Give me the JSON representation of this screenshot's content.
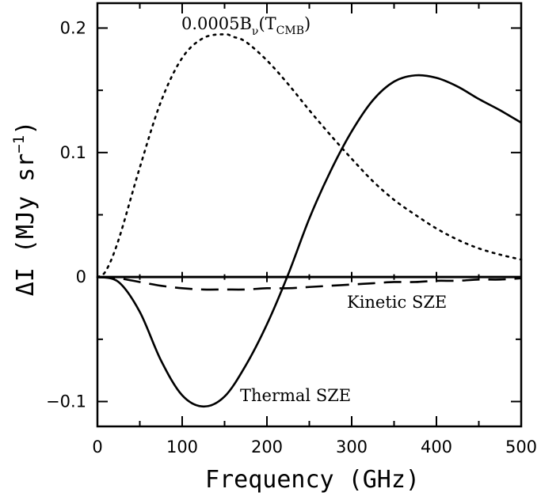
{
  "chart_data": {
    "type": "line",
    "xlabel": "Frequency (GHz)",
    "ylabel_main": "ΔI (MJy sr",
    "ylabel_exp": "−1",
    "ylabel_close": ")",
    "xlim": [
      0,
      500
    ],
    "ylim": [
      -0.12,
      0.22
    ],
    "grid": false,
    "x_ticks": [
      0,
      100,
      200,
      300,
      400,
      500
    ],
    "x_tick_labels": [
      "0",
      "100",
      "200",
      "300",
      "400",
      "500"
    ],
    "y_ticks": [
      -0.1,
      0,
      0.1,
      0.2
    ],
    "y_tick_labels": [
      "−0.1",
      "0",
      "0.1",
      "0.2"
    ],
    "annotations": {
      "kinetic": "Kinetic SZE",
      "thermal": "Thermal SZE",
      "cmb_prefix": "0.0005B",
      "cmb_sub_nu": "ν",
      "cmb_open": "(T",
      "cmb_sub": "CMB",
      "cmb_close": ")"
    },
    "series": [
      {
        "style": "solid",
        "x": [
          0,
          25,
          50,
          75,
          100,
          125,
          150,
          175,
          200,
          225,
          250,
          275,
          300,
          325,
          350,
          375,
          400,
          425,
          450,
          475,
          500
        ],
        "y": [
          0,
          -0.004,
          -0.028,
          -0.067,
          -0.095,
          -0.104,
          -0.096,
          -0.071,
          -0.038,
          0.002,
          0.047,
          0.085,
          0.117,
          0.142,
          0.157,
          0.162,
          0.16,
          0.153,
          0.143,
          0.134,
          0.124
        ]
      },
      {
        "style": "dashed",
        "x": [
          0,
          25,
          50,
          75,
          100,
          125,
          150,
          175,
          200,
          225,
          250,
          275,
          300,
          325,
          350,
          375,
          400,
          425,
          450,
          475,
          500
        ],
        "y": [
          0,
          -0.001,
          -0.004,
          -0.007,
          -0.009,
          -0.01,
          -0.01,
          -0.01,
          -0.009,
          -0.009,
          -0.008,
          -0.007,
          -0.006,
          -0.005,
          -0.004,
          -0.004,
          -0.003,
          -0.003,
          -0.002,
          -0.002,
          -0.001
        ]
      },
      {
        "style": "dotted",
        "x": [
          0,
          10,
          25,
          50,
          75,
          100,
          125,
          150,
          160,
          175,
          200,
          225,
          250,
          275,
          300,
          325,
          350,
          375,
          400,
          425,
          450,
          475,
          500
        ],
        "y": [
          0,
          0.005,
          0.03,
          0.088,
          0.141,
          0.176,
          0.192,
          0.195,
          0.193,
          0.189,
          0.174,
          0.155,
          0.134,
          0.114,
          0.095,
          0.077,
          0.062,
          0.05,
          0.039,
          0.03,
          0.023,
          0.018,
          0.014
        ]
      }
    ]
  }
}
